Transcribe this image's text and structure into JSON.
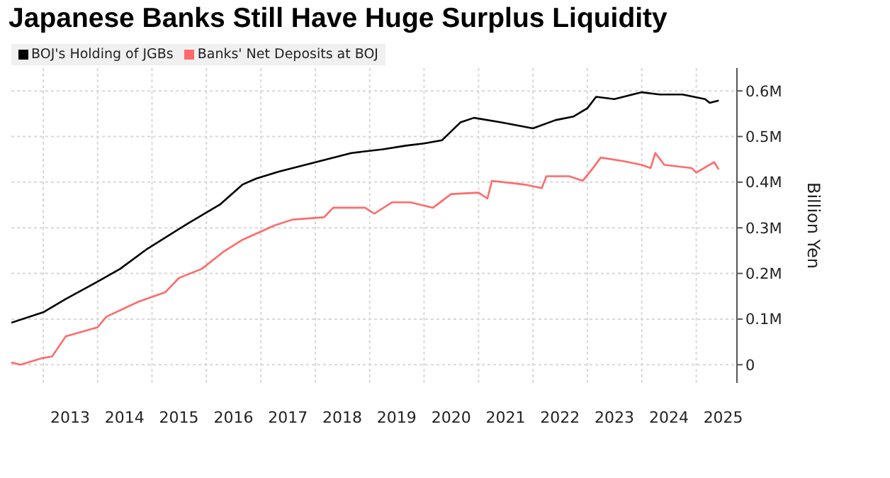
{
  "chart_data": {
    "type": "line",
    "title": "Japanese Banks Still Have Huge Surplus Liquidity",
    "ylabel": "Billion Yen",
    "xlim": [
      "2012-06",
      "2025-10"
    ],
    "xticks": [
      {
        "value": "2013",
        "label": null
      },
      {
        "value": "2013-07",
        "label": "2013"
      },
      {
        "value": "2014",
        "label": null
      },
      {
        "value": "2014-07",
        "label": "2014"
      },
      {
        "value": "2015",
        "label": null
      },
      {
        "value": "2015-07",
        "label": "2015"
      },
      {
        "value": "2016",
        "label": null
      },
      {
        "value": "2016-07",
        "label": "2016"
      },
      {
        "value": "2017",
        "label": null
      },
      {
        "value": "2017-07",
        "label": "2017"
      },
      {
        "value": "2018",
        "label": null
      },
      {
        "value": "2018-07",
        "label": "2018"
      },
      {
        "value": "2019",
        "label": null
      },
      {
        "value": "2019-07",
        "label": "2019"
      },
      {
        "value": "2020",
        "label": null
      },
      {
        "value": "2020-07",
        "label": "2020"
      },
      {
        "value": "2021",
        "label": null
      },
      {
        "value": "2021-07",
        "label": "2021"
      },
      {
        "value": "2022",
        "label": null
      },
      {
        "value": "2022-07",
        "label": "2022"
      },
      {
        "value": "2023",
        "label": null
      },
      {
        "value": "2023-07",
        "label": "2023"
      },
      {
        "value": "2024",
        "label": null
      },
      {
        "value": "2024-07",
        "label": "2024"
      },
      {
        "value": "2025",
        "label": null
      },
      {
        "value": "2025-07",
        "label": "2025"
      }
    ],
    "ylim": [
      -0.04,
      0.65
    ],
    "yticks": [
      {
        "value": 0,
        "label": "0"
      },
      {
        "value": 0.1,
        "label": "0.1M"
      },
      {
        "value": 0.2,
        "label": "0.2M"
      },
      {
        "value": 0.3,
        "label": "0.3M"
      },
      {
        "value": 0.4,
        "label": "0.4M"
      },
      {
        "value": 0.5,
        "label": "0.5M"
      },
      {
        "value": 0.6,
        "label": "0.6M"
      }
    ],
    "grid": true,
    "legend": "top left",
    "marker": "none",
    "line_style": "solid",
    "series": [
      {
        "name": "BOJ's Holding of JGBs",
        "color": "#000000",
        "x": [
          "2012-06",
          "2013-01",
          "2013-06",
          "2014-01",
          "2014-06",
          "2014-12",
          "2015-09",
          "2016-04",
          "2016-09",
          "2016-12",
          "2017-05",
          "2017-12",
          "2018-09",
          "2019-04",
          "2019-09",
          "2020-01",
          "2020-05",
          "2020-09",
          "2020-12",
          "2021-06",
          "2022-01",
          "2022-06",
          "2022-10",
          "2023-01",
          "2023-03",
          "2023-07",
          "2024-01",
          "2024-05",
          "2024-10",
          "2025-03",
          "2025-04",
          "2025-06"
        ],
        "values": [
          0.092,
          0.115,
          0.144,
          0.182,
          0.21,
          0.254,
          0.31,
          0.351,
          0.395,
          0.408,
          0.423,
          0.441,
          0.464,
          0.472,
          0.48,
          0.485,
          0.492,
          0.531,
          0.541,
          0.531,
          0.518,
          0.536,
          0.544,
          0.562,
          0.587,
          0.582,
          0.597,
          0.592,
          0.592,
          0.582,
          0.574,
          0.579
        ]
      },
      {
        "name": "Banks' Net Deposits at BOJ",
        "color": "#ff6b6b",
        "x": [
          "2012-06",
          "2012-08",
          "2013-01",
          "2013-03",
          "2013-06",
          "2014-01",
          "2014-03",
          "2014-10",
          "2015-04",
          "2015-07",
          "2015-12",
          "2016-05",
          "2016-09",
          "2017-04",
          "2017-08",
          "2018-03",
          "2018-05",
          "2018-12",
          "2019-02",
          "2019-06",
          "2019-10",
          "2020-03",
          "2020-07",
          "2021-01",
          "2021-03",
          "2021-04",
          "2021-11",
          "2022-03",
          "2022-04",
          "2022-09",
          "2022-12",
          "2023-02",
          "2023-04",
          "2023-09",
          "2024-01",
          "2024-03",
          "2024-04",
          "2024-06",
          "2024-12",
          "2025-01",
          "2025-05",
          "2025-06"
        ],
        "values": [
          0.005,
          0.0,
          0.015,
          0.018,
          0.062,
          0.082,
          0.105,
          0.138,
          0.159,
          0.19,
          0.21,
          0.249,
          0.274,
          0.305,
          0.318,
          0.323,
          0.344,
          0.344,
          0.331,
          0.356,
          0.356,
          0.344,
          0.374,
          0.377,
          0.364,
          0.403,
          0.395,
          0.387,
          0.413,
          0.413,
          0.403,
          0.428,
          0.454,
          0.446,
          0.438,
          0.431,
          0.464,
          0.438,
          0.431,
          0.421,
          0.444,
          0.428
        ]
      }
    ]
  }
}
